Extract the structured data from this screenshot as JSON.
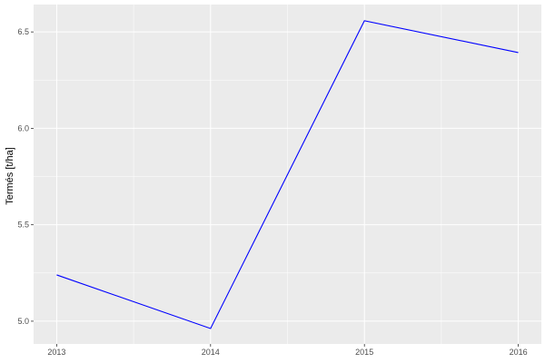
{
  "chart_data": {
    "type": "line",
    "title": "",
    "xlabel": "",
    "ylabel": "Termés [t/ha]",
    "x": [
      2013,
      2014,
      2015,
      2016
    ],
    "series": [
      {
        "values": [
          5.24,
          4.962,
          6.558,
          6.393
        ],
        "color": "#0000ff"
      }
    ],
    "xticks": [
      "2013",
      "2014",
      "2015",
      "2016"
    ],
    "yticks": [
      "5.0",
      "5.5",
      "6.0",
      "6.5"
    ],
    "xlim": [
      2012.85,
      2016.15
    ],
    "ylim": [
      4.882,
      6.642
    ],
    "grid": true,
    "panel_background": "#ebebeb",
    "grid_color": "#ffffff"
  }
}
